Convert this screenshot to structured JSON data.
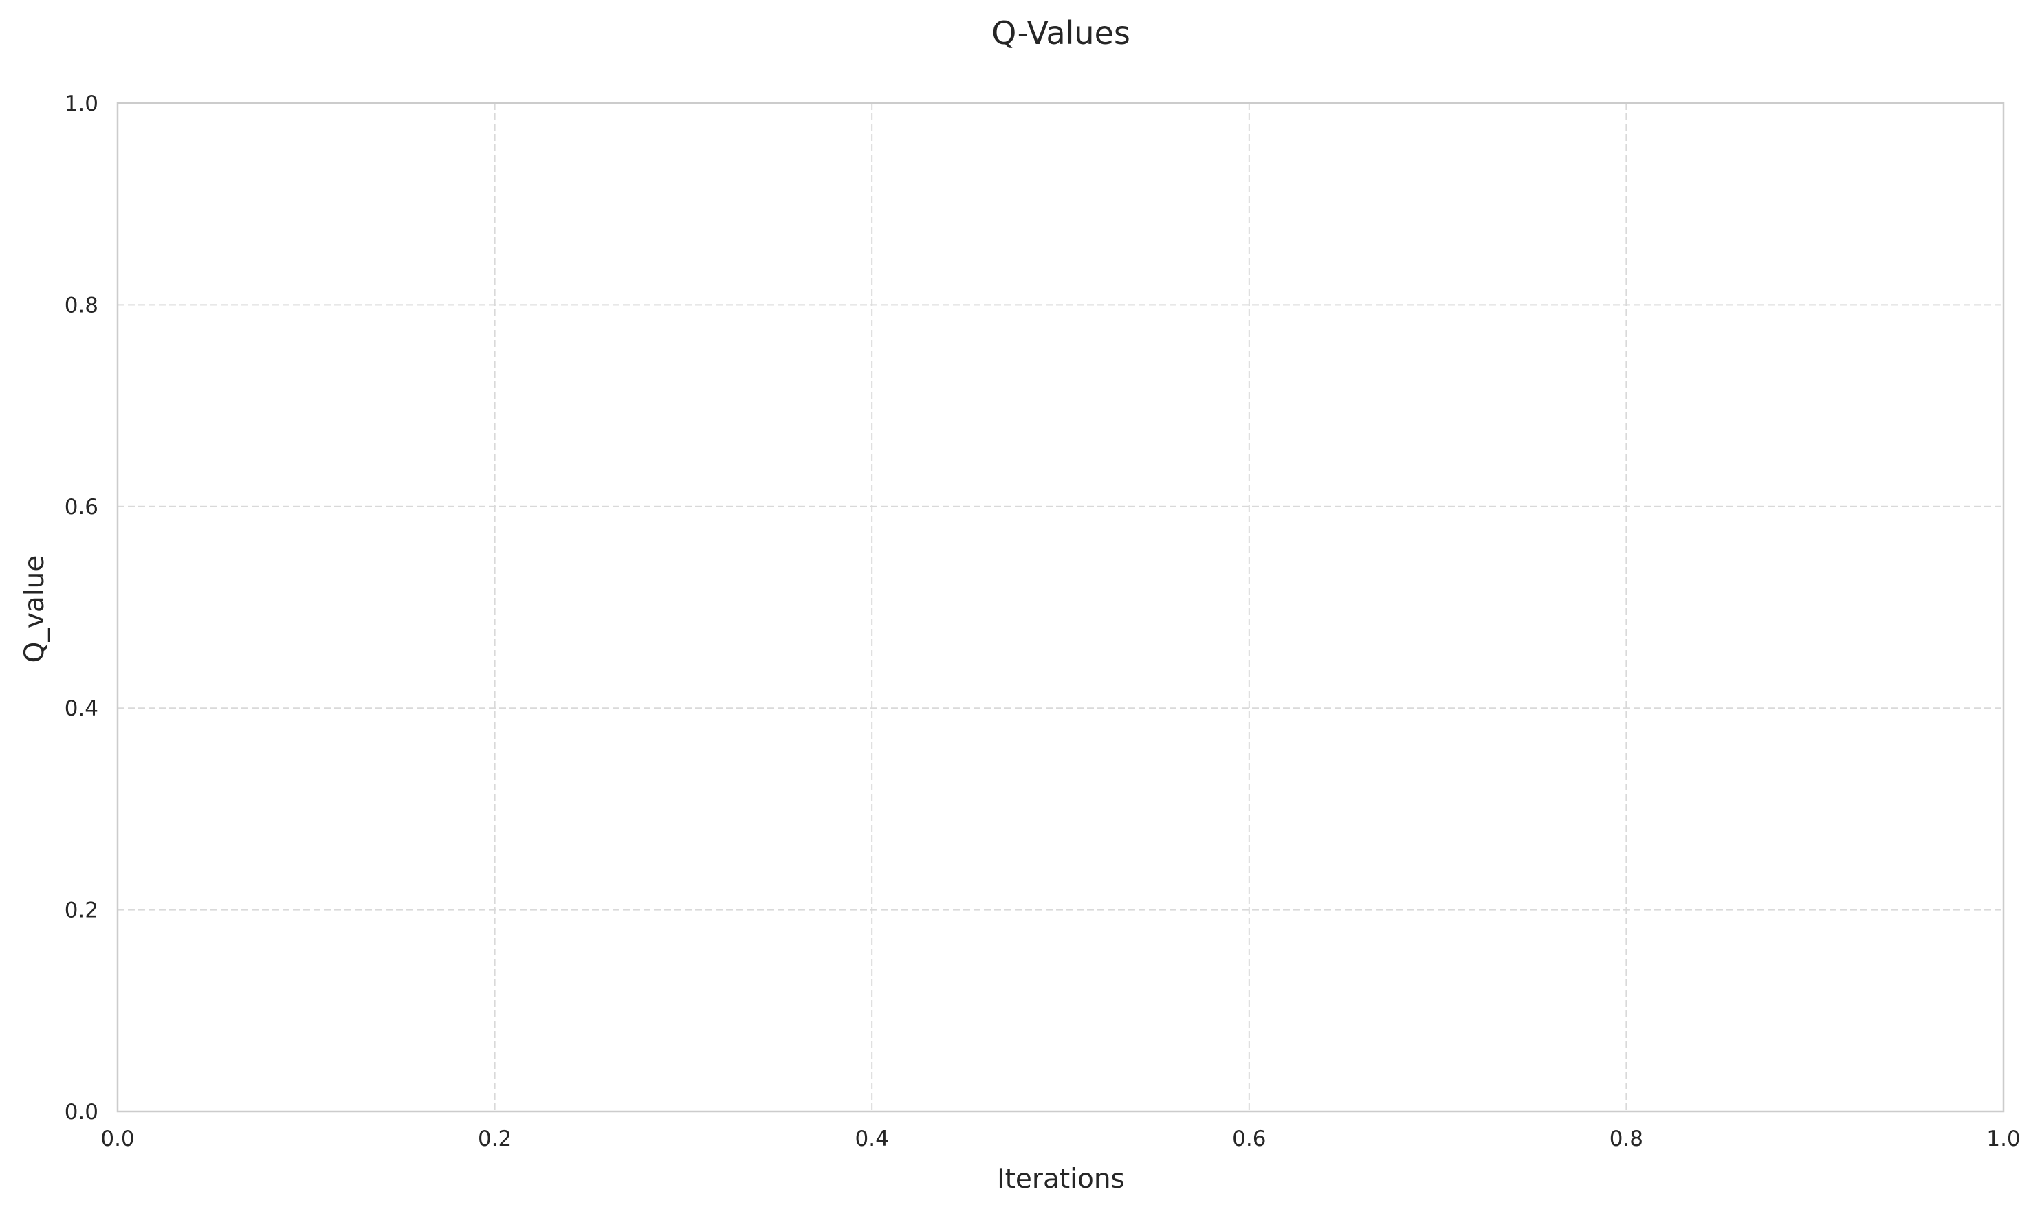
{
  "chart_data": {
    "type": "line",
    "title": "Q-Values",
    "xlabel": "Iterations",
    "ylabel": "Q_value",
    "xlim": [
      0.0,
      1.0
    ],
    "ylim": [
      0.0,
      1.0
    ],
    "xticks": [
      0.0,
      0.2,
      0.4,
      0.6,
      0.8,
      1.0
    ],
    "yticks": [
      0.0,
      0.2,
      0.4,
      0.6,
      0.8,
      1.0
    ],
    "xtick_labels": [
      "0.0",
      "0.2",
      "0.4",
      "0.6",
      "0.8",
      "1.0"
    ],
    "ytick_labels": [
      "0.0",
      "0.2",
      "0.4",
      "0.6",
      "0.8",
      "1.0"
    ],
    "grid": true,
    "grid_style": "dashed",
    "series": [],
    "colors": {
      "grid": "#d9d9d9",
      "frame": "#cccccc",
      "text": "#262626",
      "background": "#ffffff"
    }
  }
}
